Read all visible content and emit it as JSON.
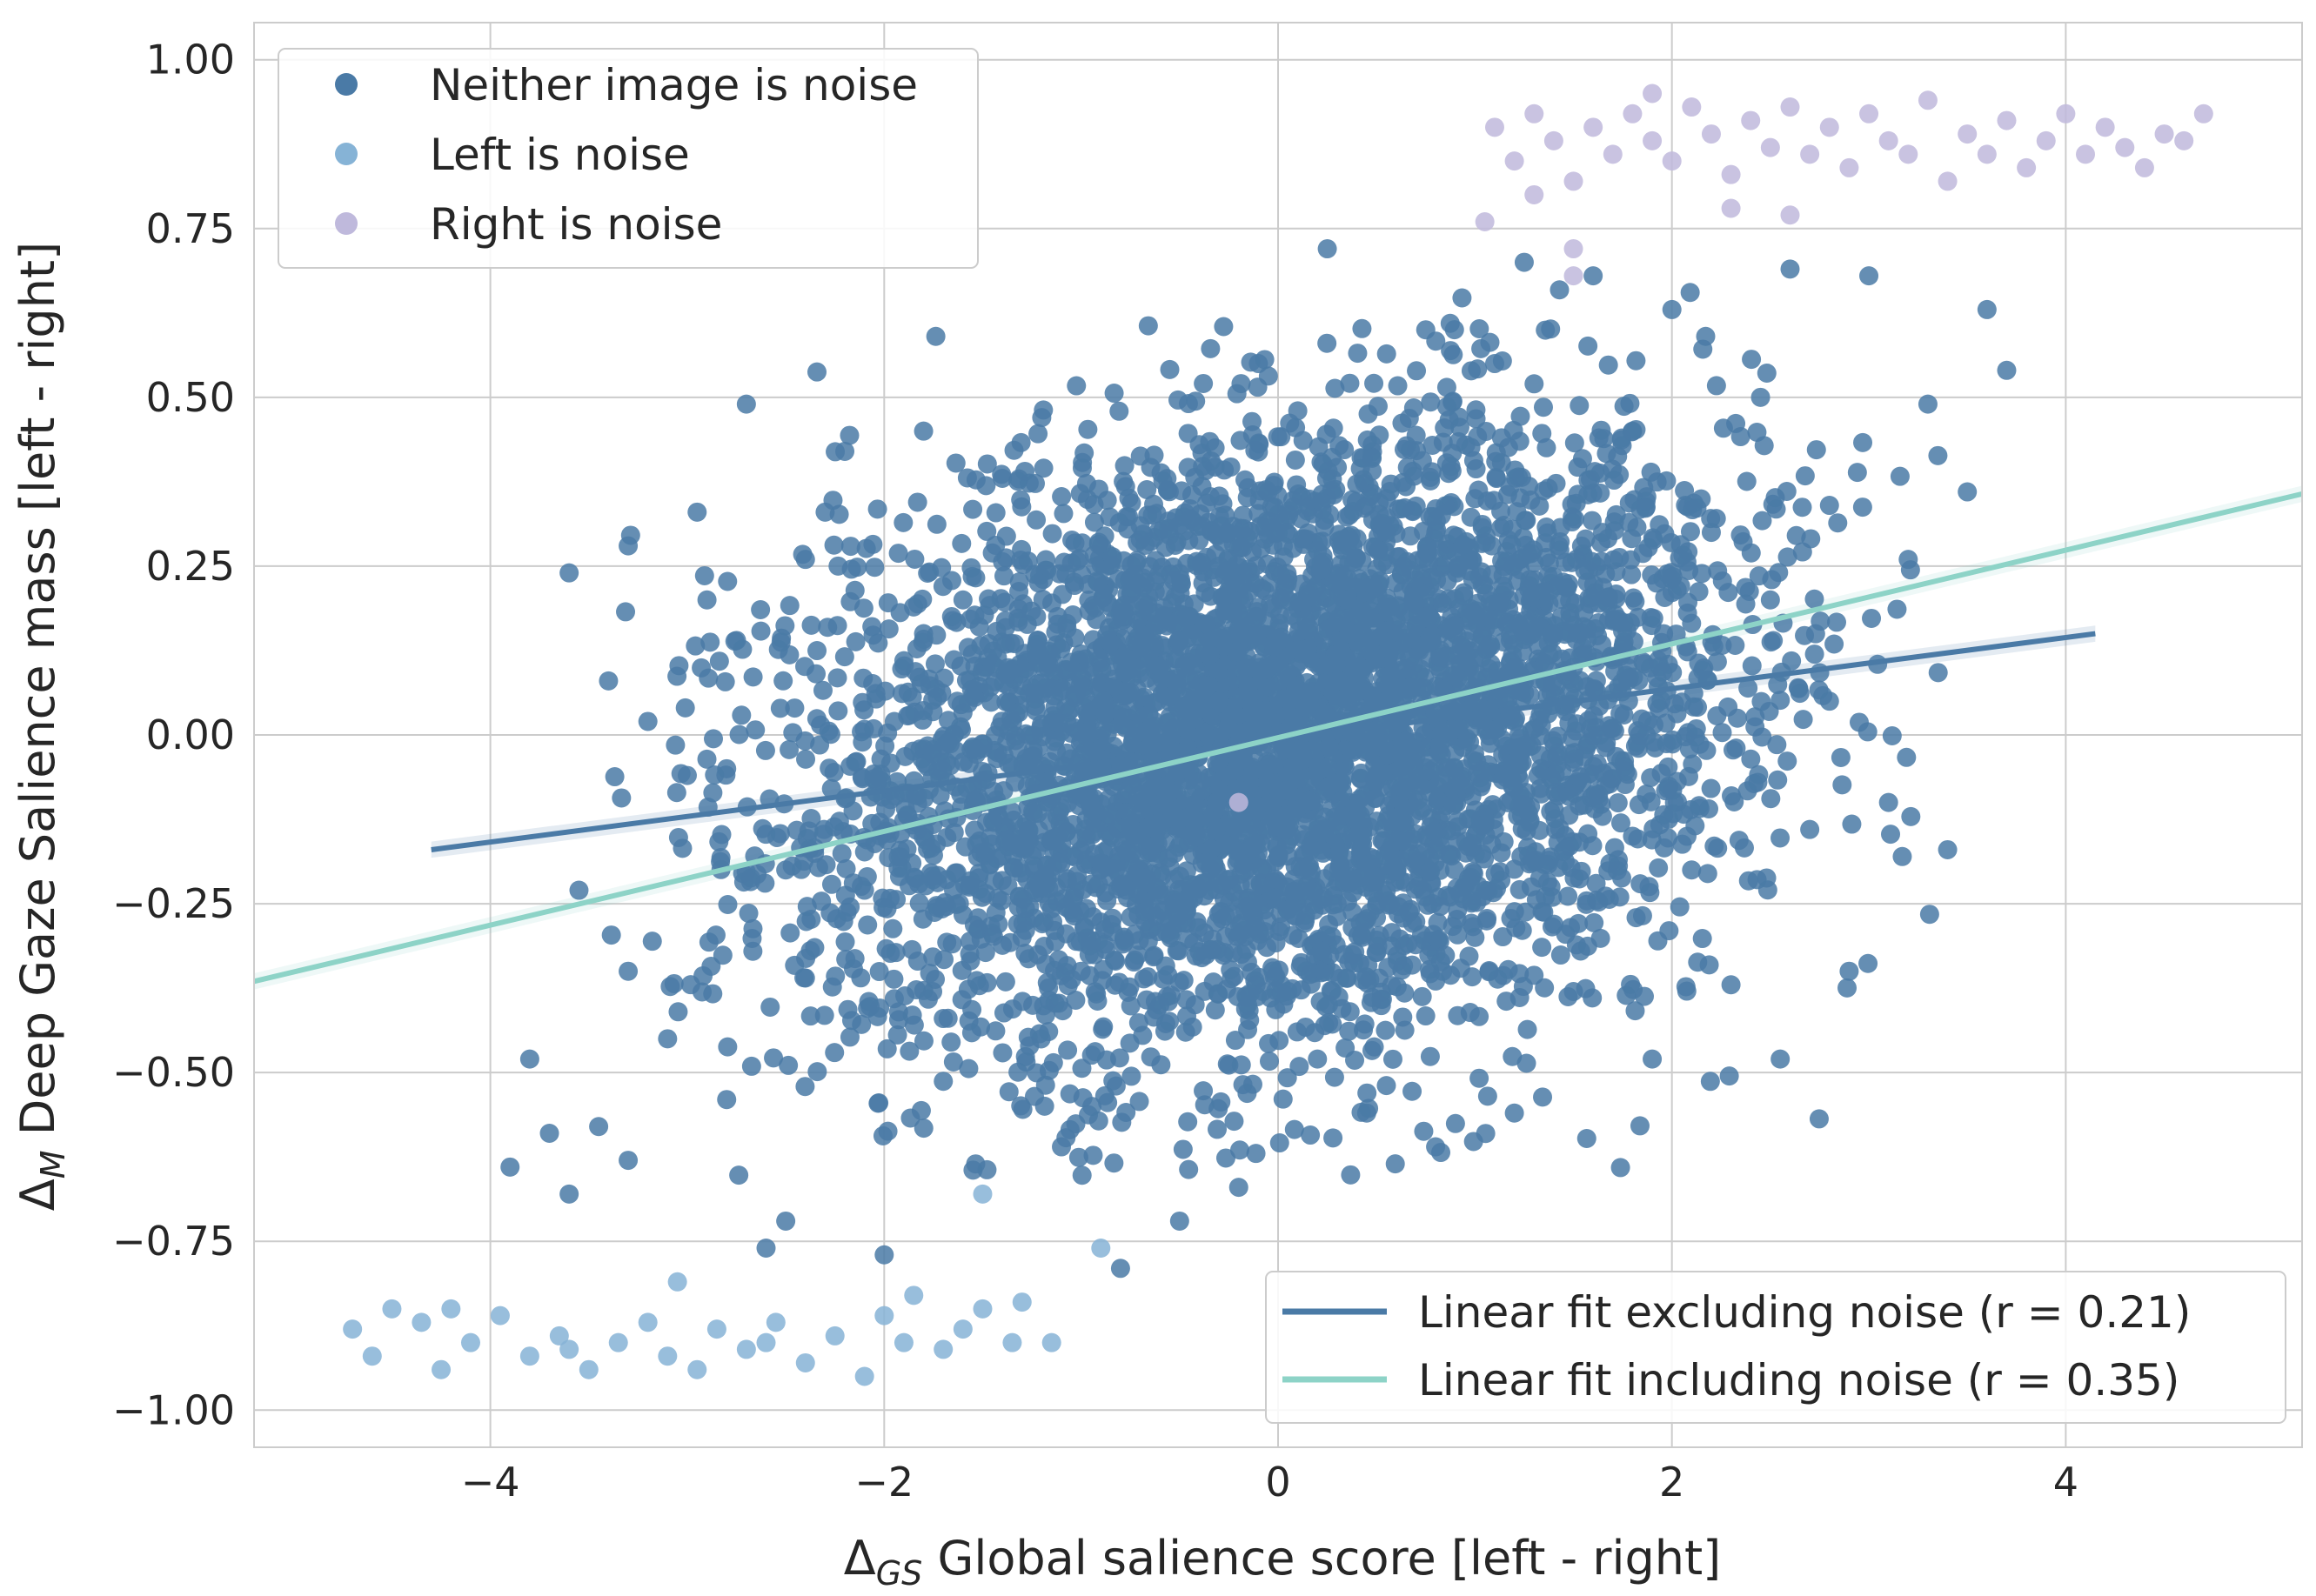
{
  "chart_data": {
    "type": "scatter",
    "xlabel": {
      "delta": "Δ",
      "sub": "GS",
      "rest": " Global salience score [left - right]"
    },
    "ylabel": {
      "delta": "Δ",
      "sub": "M",
      "rest": " Deep Gaze Salience mass [left - right]"
    },
    "xlim": [
      -5.2,
      5.2
    ],
    "ylim": [
      -1.055,
      1.055
    ],
    "xticks": [
      -4,
      -2,
      0,
      2,
      4
    ],
    "xtick_labels": [
      "−4",
      "−2",
      "0",
      "2",
      "4"
    ],
    "yticks": [
      1.0,
      0.75,
      0.5,
      0.25,
      0.0,
      -0.25,
      -0.5,
      -0.75,
      -1.0
    ],
    "ytick_labels": [
      "1.00",
      "0.75",
      "0.50",
      "0.25",
      "0.00",
      "−0.25",
      "−0.50",
      "−0.75",
      "−1.00"
    ],
    "grid": true,
    "scatter_series": [
      {
        "name": "Neither image is noise",
        "color": "#4a7aa6",
        "points": [
          [
            -3.9,
            -0.64
          ],
          [
            -3.8,
            -0.48
          ],
          [
            -3.7,
            -0.59
          ],
          [
            -3.6,
            -0.68
          ],
          [
            -3.55,
            -0.23
          ],
          [
            -3.45,
            -0.58
          ],
          [
            -3.4,
            0.08
          ],
          [
            -3.3,
            -0.63
          ],
          [
            -3.3,
            0.28
          ],
          [
            -3.2,
            0.02
          ],
          [
            -3.1,
            -0.45
          ],
          [
            -3.0,
            -0.06
          ],
          [
            -2.95,
            0.33
          ],
          [
            -2.8,
            -0.54
          ],
          [
            -2.75,
            0.14
          ],
          [
            -2.7,
            0.49
          ],
          [
            -2.6,
            -0.76
          ],
          [
            -2.5,
            -0.72
          ],
          [
            -2.4,
            -0.36
          ],
          [
            -2.3,
            0.33
          ],
          [
            -2.2,
            0.42
          ],
          [
            -2.1,
            -0.23
          ],
          [
            -2.0,
            -0.77
          ],
          [
            -1.9,
            0.11
          ],
          [
            -1.8,
            0.45
          ],
          [
            -1.7,
            -0.42
          ],
          [
            -1.6,
            0.2
          ],
          [
            -1.5,
            -0.02
          ],
          [
            -1.4,
            0.38
          ],
          [
            -1.3,
            -0.3
          ],
          [
            -1.2,
            0.47
          ],
          [
            -1.1,
            -0.61
          ],
          [
            -1.0,
            0.12
          ],
          [
            -0.9,
            -0.19
          ],
          [
            -0.8,
            -0.79
          ],
          [
            -0.7,
            0.31
          ],
          [
            -0.6,
            -0.4
          ],
          [
            -0.5,
            -0.72
          ],
          [
            -0.4,
            0.43
          ],
          [
            -0.3,
            0.05
          ],
          [
            -0.2,
            -0.67
          ],
          [
            -0.1,
            0.55
          ],
          [
            0.0,
            -0.12
          ],
          [
            0.1,
            0.48
          ],
          [
            0.2,
            -0.48
          ],
          [
            0.25,
            0.72
          ],
          [
            0.35,
            0.2
          ],
          [
            0.45,
            -0.56
          ],
          [
            0.55,
            0.35
          ],
          [
            0.65,
            -0.02
          ],
          [
            0.75,
            0.6
          ],
          [
            0.8,
            -0.61
          ],
          [
            0.9,
            0.27
          ],
          [
            1.0,
            -0.3
          ],
          [
            1.1,
            0.55
          ],
          [
            1.2,
            -0.56
          ],
          [
            1.25,
            0.7
          ],
          [
            1.4,
            0.15
          ],
          [
            1.5,
            -0.38
          ],
          [
            1.6,
            0.68
          ],
          [
            1.7,
            0.01
          ],
          [
            1.8,
            0.45
          ],
          [
            1.9,
            -0.48
          ],
          [
            2.0,
            0.63
          ],
          [
            2.1,
            -0.2
          ],
          [
            2.2,
            0.3
          ],
          [
            2.3,
            -0.37
          ],
          [
            2.45,
            0.5
          ],
          [
            2.55,
            -0.48
          ],
          [
            2.6,
            0.69
          ],
          [
            2.7,
            -0.14
          ],
          [
            2.8,
            0.34
          ],
          [
            2.9,
            -0.35
          ],
          [
            3.0,
            0.68
          ],
          [
            3.1,
            -0.1
          ],
          [
            3.2,
            0.26
          ],
          [
            3.3,
            0.49
          ],
          [
            3.4,
            -0.17
          ],
          [
            3.5,
            0.36
          ],
          [
            3.6,
            0.63
          ],
          [
            3.7,
            0.54
          ],
          [
            -3.6,
            0.24
          ],
          [
            -3.3,
            -0.35
          ],
          [
            -2.9,
            0.2
          ],
          [
            -2.4,
            0.26
          ],
          [
            1.5,
            0.1
          ],
          [
            -1.5,
            -0.1
          ],
          [
            0.5,
            0.05
          ],
          [
            -0.5,
            -0.05
          ],
          [
            2.5,
            0.2
          ],
          [
            -2.5,
            -0.2
          ],
          [
            1.0,
            0.35
          ],
          [
            -1.0,
            -0.35
          ],
          [
            0.3,
            -0.25
          ],
          [
            -0.3,
            0.25
          ],
          [
            1.8,
            -0.15
          ],
          [
            -1.8,
            0.15
          ],
          [
            2.8,
            0.05
          ],
          [
            -2.8,
            -0.05
          ],
          [
            0.0,
            0.3
          ]
        ]
      },
      {
        "name": "Left is noise",
        "color": "#86b3d6",
        "points": [
          [
            -4.7,
            -0.88
          ],
          [
            -4.6,
            -0.92
          ],
          [
            -4.5,
            -0.85
          ],
          [
            -4.35,
            -0.87
          ],
          [
            -4.25,
            -0.94
          ],
          [
            -4.1,
            -0.9
          ],
          [
            -3.95,
            -0.86
          ],
          [
            -3.8,
            -0.92
          ],
          [
            -3.65,
            -0.89
          ],
          [
            -3.5,
            -0.94
          ],
          [
            -3.35,
            -0.9
          ],
          [
            -3.2,
            -0.87
          ],
          [
            -3.1,
            -0.92
          ],
          [
            -3.05,
            -0.81
          ],
          [
            -2.95,
            -0.94
          ],
          [
            -2.85,
            -0.88
          ],
          [
            -2.7,
            -0.91
          ],
          [
            -2.55,
            -0.87
          ],
          [
            -2.4,
            -0.93
          ],
          [
            -2.25,
            -0.89
          ],
          [
            -2.1,
            -0.95
          ],
          [
            -2.0,
            -0.86
          ],
          [
            -1.85,
            -0.83
          ],
          [
            -1.7,
            -0.91
          ],
          [
            -1.6,
            -0.88
          ],
          [
            -1.5,
            -0.85
          ],
          [
            -1.35,
            -0.9
          ],
          [
            -1.3,
            -0.84
          ],
          [
            -1.15,
            -0.9
          ],
          [
            -1.5,
            -0.68
          ],
          [
            -0.9,
            -0.76
          ],
          [
            -4.2,
            -0.85
          ],
          [
            -3.6,
            -0.91
          ],
          [
            -2.6,
            -0.9
          ],
          [
            -1.9,
            -0.9
          ]
        ]
      },
      {
        "name": "Right is noise",
        "color": "#bfb9dc",
        "points": [
          [
            1.1,
            0.9
          ],
          [
            1.2,
            0.85
          ],
          [
            1.3,
            0.92
          ],
          [
            1.4,
            0.88
          ],
          [
            1.5,
            0.82
          ],
          [
            1.6,
            0.9
          ],
          [
            1.7,
            0.86
          ],
          [
            1.8,
            0.92
          ],
          [
            1.9,
            0.88
          ],
          [
            2.0,
            0.85
          ],
          [
            2.1,
            0.93
          ],
          [
            2.2,
            0.89
          ],
          [
            2.3,
            0.83
          ],
          [
            2.4,
            0.91
          ],
          [
            2.5,
            0.87
          ],
          [
            2.6,
            0.93
          ],
          [
            2.7,
            0.86
          ],
          [
            2.8,
            0.9
          ],
          [
            2.9,
            0.84
          ],
          [
            3.0,
            0.92
          ],
          [
            3.1,
            0.88
          ],
          [
            3.2,
            0.86
          ],
          [
            3.3,
            0.94
          ],
          [
            3.4,
            0.82
          ],
          [
            3.5,
            0.89
          ],
          [
            3.6,
            0.86
          ],
          [
            3.7,
            0.91
          ],
          [
            3.8,
            0.84
          ],
          [
            3.9,
            0.88
          ],
          [
            4.0,
            0.92
          ],
          [
            4.1,
            0.86
          ],
          [
            4.2,
            0.9
          ],
          [
            4.3,
            0.87
          ],
          [
            4.4,
            0.84
          ],
          [
            4.5,
            0.89
          ],
          [
            4.6,
            0.88
          ],
          [
            4.7,
            0.92
          ],
          [
            1.9,
            0.95
          ],
          [
            2.3,
            0.78
          ],
          [
            2.6,
            0.77
          ],
          [
            1.05,
            0.76
          ],
          [
            1.5,
            0.72
          ],
          [
            1.5,
            0.68
          ],
          [
            -0.2,
            -0.1
          ],
          [
            1.3,
            0.8
          ]
        ]
      }
    ],
    "fit_series": [
      {
        "name": "Linear fit excluding noise (r = 0.21)",
        "color": "#4a7aa6",
        "x": [
          -4.3,
          4.15
        ],
        "y": [
          -0.17,
          0.15
        ]
      },
      {
        "name": "Linear fit including noise (r = 0.35)",
        "color": "#8dd3c7",
        "x": [
          -5.2,
          5.2
        ],
        "y": [
          -0.365,
          0.357
        ]
      }
    ],
    "scatter_legend_position": "upper-left",
    "fit_legend_position": "lower-right"
  }
}
